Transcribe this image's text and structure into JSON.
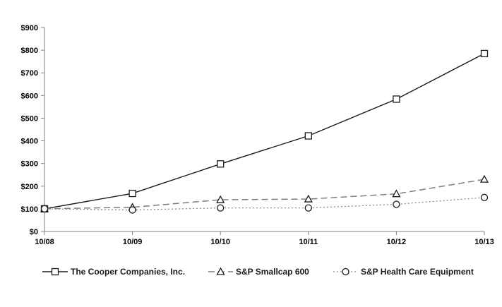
{
  "chart_data": {
    "type": "line",
    "title": "",
    "xlabel": "",
    "ylabel": "",
    "x_categories": [
      "10/08",
      "10/09",
      "10/10",
      "10/11",
      "10/12",
      "10/13"
    ],
    "ylim": [
      0,
      900
    ],
    "ytick_step": 100,
    "ytick_labels": [
      "$0",
      "$100",
      "$200",
      "$300",
      "$400",
      "$500",
      "$600",
      "$700",
      "$800",
      "$900"
    ],
    "grid": false,
    "legend_position": "bottom",
    "background_color": "#ffffff",
    "axis_color": "#808080",
    "text_color": "#000000",
    "series": [
      {
        "name": "The Cooper Companies, Inc.",
        "marker": "square",
        "line_style": "solid",
        "line_color": "#1a1a1a",
        "marker_color": "#1a1a1a",
        "values": [
          100,
          168,
          298,
          422,
          584,
          785
        ]
      },
      {
        "name": "S&P Smallcap 600",
        "marker": "triangle",
        "line_style": "dashed",
        "line_color": "#7d7d7d",
        "marker_color": "#1a1a1a",
        "values": [
          100,
          107,
          140,
          143,
          166,
          230
        ]
      },
      {
        "name": "S&P Health Care Equipment",
        "marker": "circle",
        "line_style": "dotted",
        "line_color": "#8c8c8c",
        "marker_color": "#1a1a1a",
        "values": [
          100,
          95,
          104,
          104,
          120,
          150
        ]
      }
    ]
  }
}
